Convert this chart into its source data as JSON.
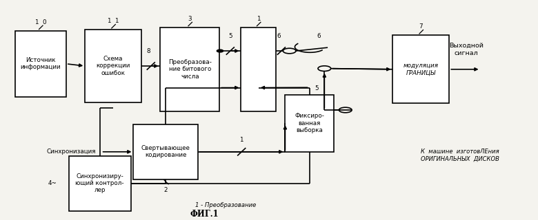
{
  "bg": "#f4f3ee",
  "lw": 1.2,
  "fs": 6.3,
  "boxes": {
    "src": [
      0.028,
      0.56,
      0.095,
      0.3
    ],
    "corr": [
      0.158,
      0.535,
      0.105,
      0.33
    ],
    "bit": [
      0.298,
      0.495,
      0.11,
      0.38
    ],
    "mux": [
      0.448,
      0.495,
      0.065,
      0.38
    ],
    "fixed": [
      0.53,
      0.31,
      0.09,
      0.26
    ],
    "mod": [
      0.73,
      0.53,
      0.105,
      0.31
    ],
    "conv": [
      0.248,
      0.185,
      0.12,
      0.25
    ],
    "sync": [
      0.128,
      0.042,
      0.115,
      0.25
    ]
  },
  "box_labels": {
    "src": "Источник\nинформации",
    "corr": "Схема\nкоррекции\nошибок",
    "bit": "Преобразова-\nние битового\nчисла",
    "mux": "",
    "fixed": "Фиксиро-\nванная\nвыборка",
    "mod": "модуляция\nГРАНИЦЫ",
    "conv": "Свертывающее\nкодирование",
    "sync": "Синхронизиру-\nющий контрол-\nлер"
  },
  "sync_label": "Синхронизация",
  "out_label1": "Выходной\nсигнал",
  "out_label2": "К  машине  изготовЛЕния\nОРИГИНАЛЬНЫХ  ДИСКОВ",
  "caption": "1 - Преобразование",
  "title": "ФИГ.1"
}
